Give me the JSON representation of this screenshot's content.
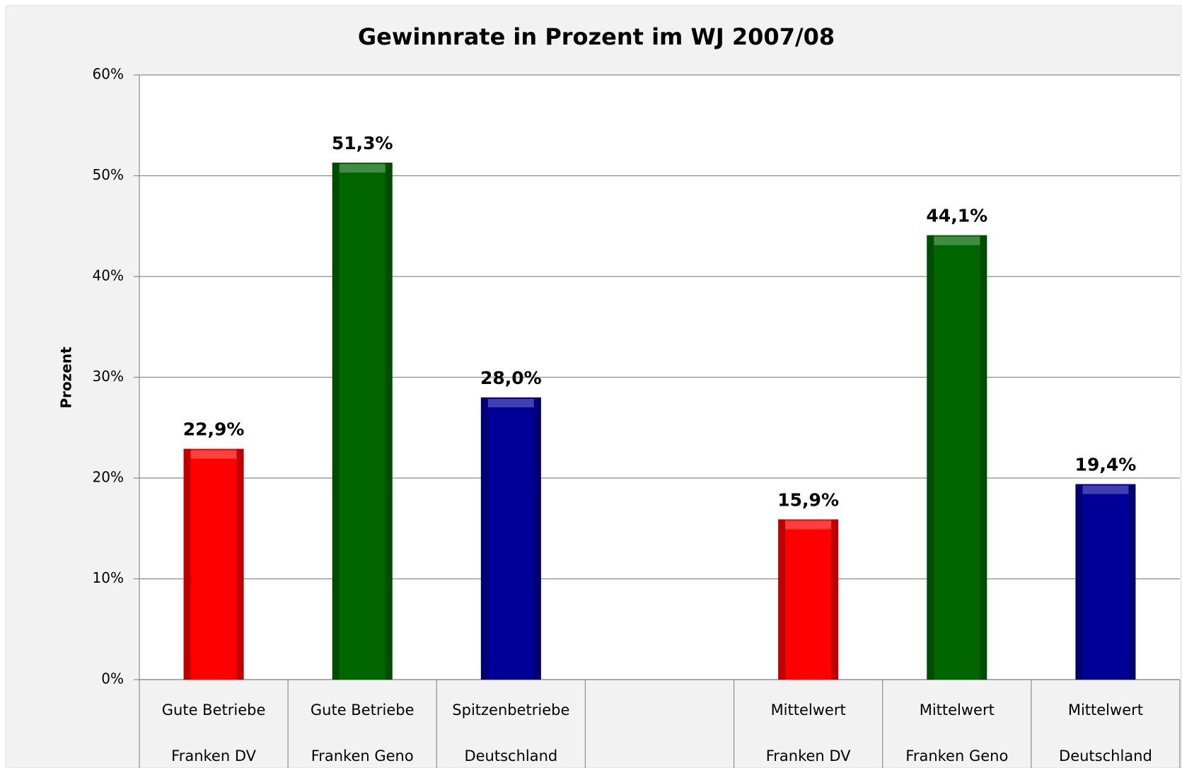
{
  "chart_data": {
    "type": "bar",
    "title": "Gewinnrate in Prozent im WJ 2007/08",
    "y_label": "Prozent",
    "categories": [
      [
        "Gute Betriebe",
        "Franken DV"
      ],
      [
        "Gute Betriebe",
        "Franken Geno"
      ],
      [
        "Spitzenbetriebe",
        "Deutschland"
      ],
      null,
      [
        "Mittelwert",
        "Franken DV"
      ],
      [
        "Mittelwert",
        "Franken Geno"
      ],
      [
        "Mittelwert",
        "Deutschland"
      ]
    ],
    "values": [
      22.9,
      51.3,
      28.0,
      null,
      15.9,
      44.1,
      19.4
    ],
    "value_labels": [
      "22,9%",
      "51,3%",
      "28,0%",
      null,
      "15,9%",
      "44,1%",
      "19,4%"
    ],
    "colors": [
      "#ff0000",
      "#006600",
      "#000099",
      null,
      "#ff0000",
      "#006600",
      "#000099"
    ],
    "ylim": [
      0,
      60
    ],
    "yticks": [
      {
        "value": 0,
        "label": "0%"
      },
      {
        "value": 10,
        "label": "10%"
      },
      {
        "value": 20,
        "label": "20%"
      },
      {
        "value": 30,
        "label": "30%"
      },
      {
        "value": 40,
        "label": "40%"
      },
      {
        "value": 50,
        "label": "50%"
      },
      {
        "value": 60,
        "label": "60%"
      }
    ],
    "grid": true
  }
}
